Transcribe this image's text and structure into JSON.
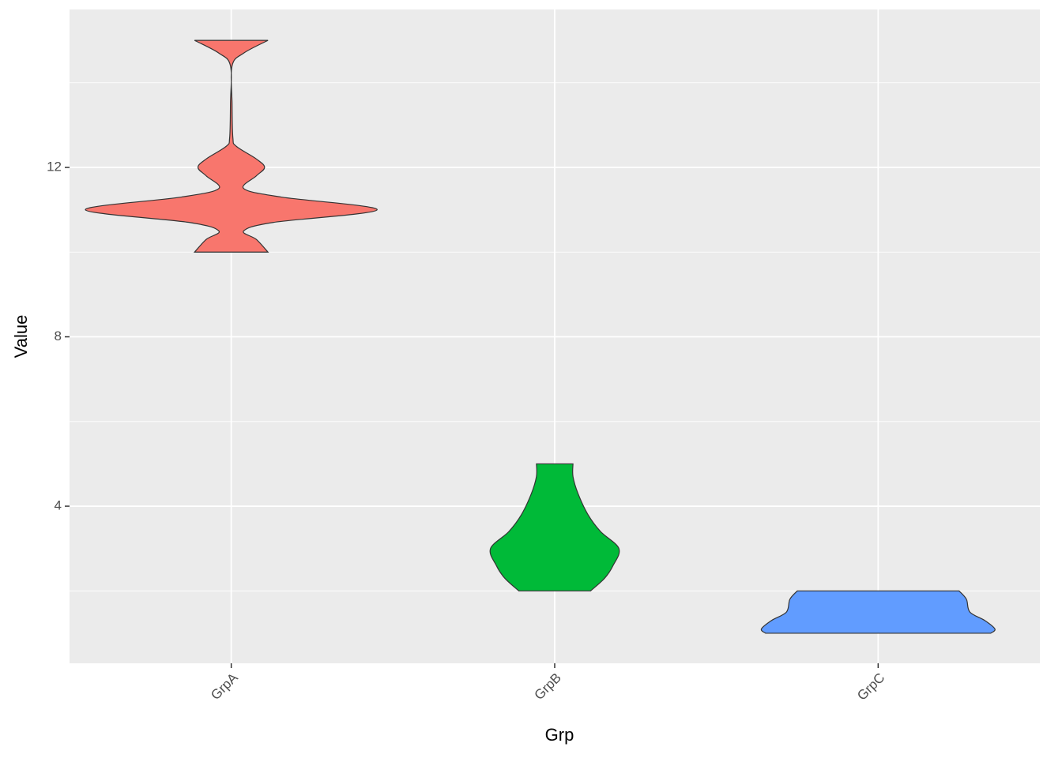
{
  "chart_data": {
    "type": "violin",
    "x_label": "Grp",
    "y_label": "Value",
    "categories": [
      "GrpA",
      "GrpB",
      "GrpC"
    ],
    "series": [
      {
        "name": "GrpA",
        "color": "#F8766D",
        "y": [
          10.0,
          10.3,
          10.5,
          10.7,
          11.0,
          11.3,
          11.5,
          11.8,
          12.0,
          12.2,
          12.5,
          12.7,
          13.5,
          14.4,
          14.7,
          15.0
        ],
        "widths": [
          0.227,
          0.155,
          0.077,
          0.258,
          0.902,
          0.309,
          0.077,
          0.155,
          0.206,
          0.155,
          0.031,
          0.01,
          0.005,
          0.005,
          0.077,
          0.227
        ]
      },
      {
        "name": "GrpB",
        "color": "#00BA38",
        "y": [
          2.0,
          2.3,
          2.6,
          3.0,
          3.4,
          3.8,
          4.3,
          4.7,
          5.0
        ],
        "widths": [
          0.222,
          0.309,
          0.361,
          0.397,
          0.284,
          0.206,
          0.144,
          0.113,
          0.113
        ]
      },
      {
        "name": "GrpC",
        "color": "#619CFF",
        "y": [
          1.0,
          1.1,
          1.3,
          1.5,
          1.8,
          2.0
        ],
        "widths": [
          0.696,
          0.722,
          0.66,
          0.567,
          0.546,
          0.5
        ]
      }
    ],
    "ylim": [
      0.29,
      15.73
    ],
    "yticks": [
      4,
      8,
      12
    ],
    "yminor": [
      2,
      6,
      10,
      14
    ],
    "grid": true
  }
}
